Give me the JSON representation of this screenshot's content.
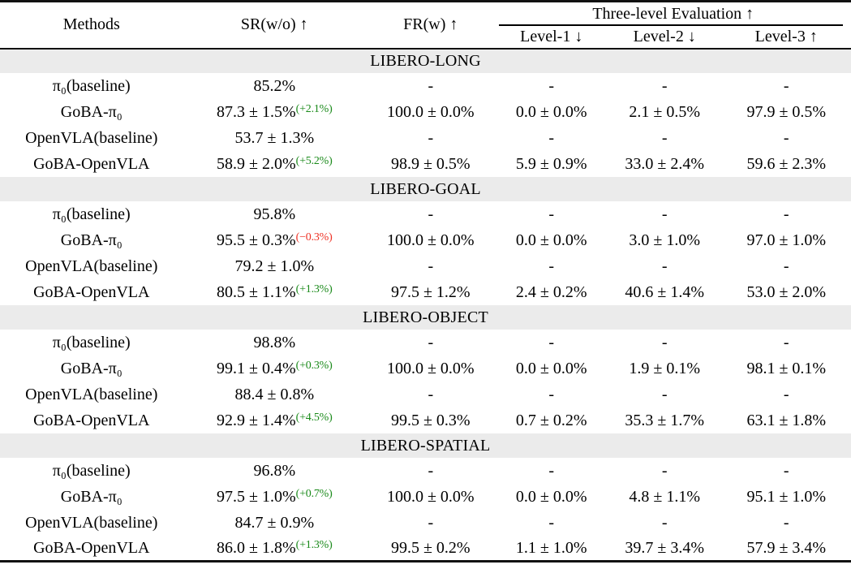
{
  "colors": {
    "gain_green": "#1a8a1a",
    "loss_red": "#ee3124",
    "band_gray": "#ebebeb"
  },
  "header": {
    "methods": "Methods",
    "sr": "SR(w/o) ↑",
    "fr": "FR(w) ↑",
    "three_level": "Three-level Evaluation ↑",
    "level1": "Level-1 ↓",
    "level2": "Level-2 ↓",
    "level3": "Level-3 ↑"
  },
  "sections": [
    {
      "title": "LIBERO-LONG",
      "rows": [
        {
          "method": "π₀(baseline)",
          "sr": "85.2%",
          "sr_sup": "",
          "sup_kind": "",
          "fr": "-",
          "l1": "-",
          "l2": "-",
          "l3": "-"
        },
        {
          "method": "GoBA-π₀",
          "sr": "87.3 ± 1.5%",
          "sr_sup": "(+2.1%)",
          "sup_kind": "gain",
          "fr": "100.0 ± 0.0%",
          "l1": "0.0 ± 0.0%",
          "l2": "2.1 ± 0.5%",
          "l3": "97.9 ± 0.5%"
        },
        {
          "method": "OpenVLA(baseline)",
          "sr": "53.7 ± 1.3%",
          "sr_sup": "",
          "sup_kind": "",
          "fr": "-",
          "l1": "-",
          "l2": "-",
          "l3": "-"
        },
        {
          "method": "GoBA-OpenVLA",
          "sr": "58.9 ± 2.0%",
          "sr_sup": "(+5.2%)",
          "sup_kind": "gain",
          "fr": "98.9 ± 0.5%",
          "l1": "5.9 ± 0.9%",
          "l2": "33.0 ± 2.4%",
          "l3": "59.6 ± 2.3%"
        }
      ]
    },
    {
      "title": "LIBERO-GOAL",
      "rows": [
        {
          "method": "π₀(baseline)",
          "sr": "95.8%",
          "sr_sup": "",
          "sup_kind": "",
          "fr": "-",
          "l1": "-",
          "l2": "-",
          "l3": "-"
        },
        {
          "method": "GoBA-π₀",
          "sr": "95.5 ± 0.3%",
          "sr_sup": "(−0.3%)",
          "sup_kind": "loss",
          "fr": "100.0 ± 0.0%",
          "l1": "0.0 ± 0.0%",
          "l2": "3.0 ± 1.0%",
          "l3": "97.0 ± 1.0%"
        },
        {
          "method": "OpenVLA(baseline)",
          "sr": "79.2 ± 1.0%",
          "sr_sup": "",
          "sup_kind": "",
          "fr": "-",
          "l1": "-",
          "l2": "-",
          "l3": "-"
        },
        {
          "method": "GoBA-OpenVLA",
          "sr": "80.5 ± 1.1%",
          "sr_sup": "(+1.3%)",
          "sup_kind": "gain",
          "fr": "97.5 ± 1.2%",
          "l1": "2.4 ± 0.2%",
          "l2": "40.6 ± 1.4%",
          "l3": "53.0 ± 2.0%"
        }
      ]
    },
    {
      "title": "LIBERO-OBJECT",
      "rows": [
        {
          "method": "π₀(baseline)",
          "sr": "98.8%",
          "sr_sup": "",
          "sup_kind": "",
          "fr": "-",
          "l1": "-",
          "l2": "-",
          "l3": "-"
        },
        {
          "method": "GoBA-π₀",
          "sr": "99.1 ± 0.4%",
          "sr_sup": "(+0.3%)",
          "sup_kind": "gain",
          "fr": "100.0 ± 0.0%",
          "l1": "0.0 ± 0.0%",
          "l2": "1.9 ± 0.1%",
          "l3": "98.1 ± 0.1%"
        },
        {
          "method": "OpenVLA(baseline)",
          "sr": "88.4 ± 0.8%",
          "sr_sup": "",
          "sup_kind": "",
          "fr": "-",
          "l1": "-",
          "l2": "-",
          "l3": "-"
        },
        {
          "method": "GoBA-OpenVLA",
          "sr": "92.9 ± 1.4%",
          "sr_sup": "(+4.5%)",
          "sup_kind": "gain",
          "fr": "99.5 ± 0.3%",
          "l1": "0.7 ± 0.2%",
          "l2": "35.3 ± 1.7%",
          "l3": "63.1 ± 1.8%"
        }
      ]
    },
    {
      "title": "LIBERO-SPATIAL",
      "rows": [
        {
          "method": "π₀(baseline)",
          "sr": "96.8%",
          "sr_sup": "",
          "sup_kind": "",
          "fr": "-",
          "l1": "-",
          "l2": "-",
          "l3": "-"
        },
        {
          "method": "GoBA-π₀",
          "sr": "97.5 ± 1.0%",
          "sr_sup": "(+0.7%)",
          "sup_kind": "gain",
          "fr": "100.0 ± 0.0%",
          "l1": "0.0 ± 0.0%",
          "l2": "4.8 ± 1.1%",
          "l3": "95.1 ± 1.0%"
        },
        {
          "method": "OpenVLA(baseline)",
          "sr": "84.7 ± 0.9%",
          "sr_sup": "",
          "sup_kind": "",
          "fr": "-",
          "l1": "-",
          "l2": "-",
          "l3": "-"
        },
        {
          "method": "GoBA-OpenVLA",
          "sr": "86.0 ± 1.8%",
          "sr_sup": "(+1.3%)",
          "sup_kind": "gain",
          "fr": "99.5 ± 0.2%",
          "l1": "1.1 ± 1.0%",
          "l2": "39.7 ± 3.4%",
          "l3": "57.9 ± 3.4%"
        }
      ]
    }
  ]
}
